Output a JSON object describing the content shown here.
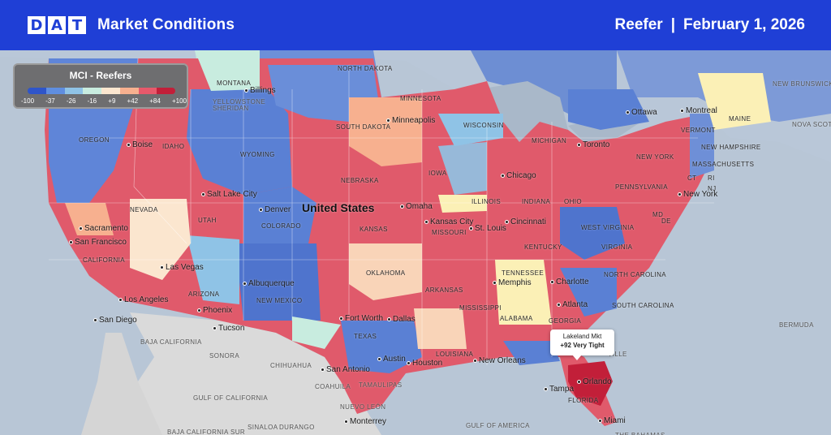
{
  "header": {
    "logo_letters": [
      "D",
      "A",
      "T"
    ],
    "title": "Market Conditions",
    "equipment": "Reefer",
    "separator": "|",
    "date": "February 1, 2026"
  },
  "legend": {
    "title": "MCI - Reefers",
    "ticks": [
      "-100",
      "-37",
      "-26",
      "-16",
      "+9",
      "+42",
      "+84",
      "+100"
    ],
    "colors": [
      "#2f55c9",
      "#5f8ee0",
      "#8fc3e6",
      "#c8ecdf",
      "#fbe6cf",
      "#f7b08f",
      "#e7596b",
      "#c21f39"
    ]
  },
  "tooltip": {
    "market": "Lakeland Mkt",
    "value": "+92 Very Tight"
  },
  "map": {
    "big_label": "United States",
    "states": [
      "NORTH DAKOTA",
      "MONTANA",
      "MINNESOTA",
      "SOUTH DAKOTA",
      "WISCONSIN",
      "MICHIGAN",
      "OREGON",
      "IDAHO",
      "WYOMING",
      "IOWA",
      "NEBRASKA",
      "ILLINOIS",
      "INDIANA",
      "OHIO",
      "PENNSYLVANIA",
      "NEW YORK",
      "VERMONT",
      "NEW HAMPSHIRE",
      "MASSACHUSETTS",
      "MAINE",
      "CT",
      "RI",
      "NJ",
      "MD",
      "DE",
      "NEVADA",
      "UTAH",
      "COLORADO",
      "KANSAS",
      "MISSOURI",
      "KENTUCKY",
      "WEST VIRGINIA",
      "VIRGINIA",
      "CALIFORNIA",
      "ARIZONA",
      "NEW MEXICO",
      "OKLAHOMA",
      "ARKANSAS",
      "TENNESSEE",
      "NORTH CAROLINA",
      "SOUTH CAROLINA",
      "MISSISSIPPI",
      "ALABAMA",
      "GEORGIA",
      "TEXAS",
      "LOUISIANA",
      "FLORIDA"
    ],
    "cities": [
      "Ottawa",
      "Montreal",
      "Minneapolis",
      "Toronto",
      "Boise",
      "Salt Lake City",
      "Omaha",
      "Chicago",
      "New York",
      "Denver",
      "Kansas City",
      "St. Louis",
      "Cincinnati",
      "Sacramento",
      "San Francisco",
      "Las Vegas",
      "Albuquerque",
      "Memphis",
      "Charlotte",
      "Los Angeles",
      "Phoenix",
      "San Diego",
      "Tucson",
      "Fort Worth",
      "Dallas",
      "Atlanta",
      "Austin",
      "Houston",
      "New Orleans",
      "San Antonio",
      "Orlando",
      "Tampa",
      "Miami",
      "Monterrey",
      "Billings"
    ],
    "foreign": [
      "NEW BRUNSWICK",
      "NOVA SCOTIA",
      "Bermuda",
      "BAJA CALIFORNIA",
      "SONORA",
      "CHIHUAHUA",
      "COAHUILA",
      "NUEVO LEÓN",
      "BAJA CALIFORNIA SUR",
      "SINALOA",
      "DURANGO",
      "TAMAULIPAS",
      "Gulf of California",
      "Gulf of America",
      "The Bahamas",
      "ville",
      "Sheridan",
      "Yellowstone"
    ]
  }
}
